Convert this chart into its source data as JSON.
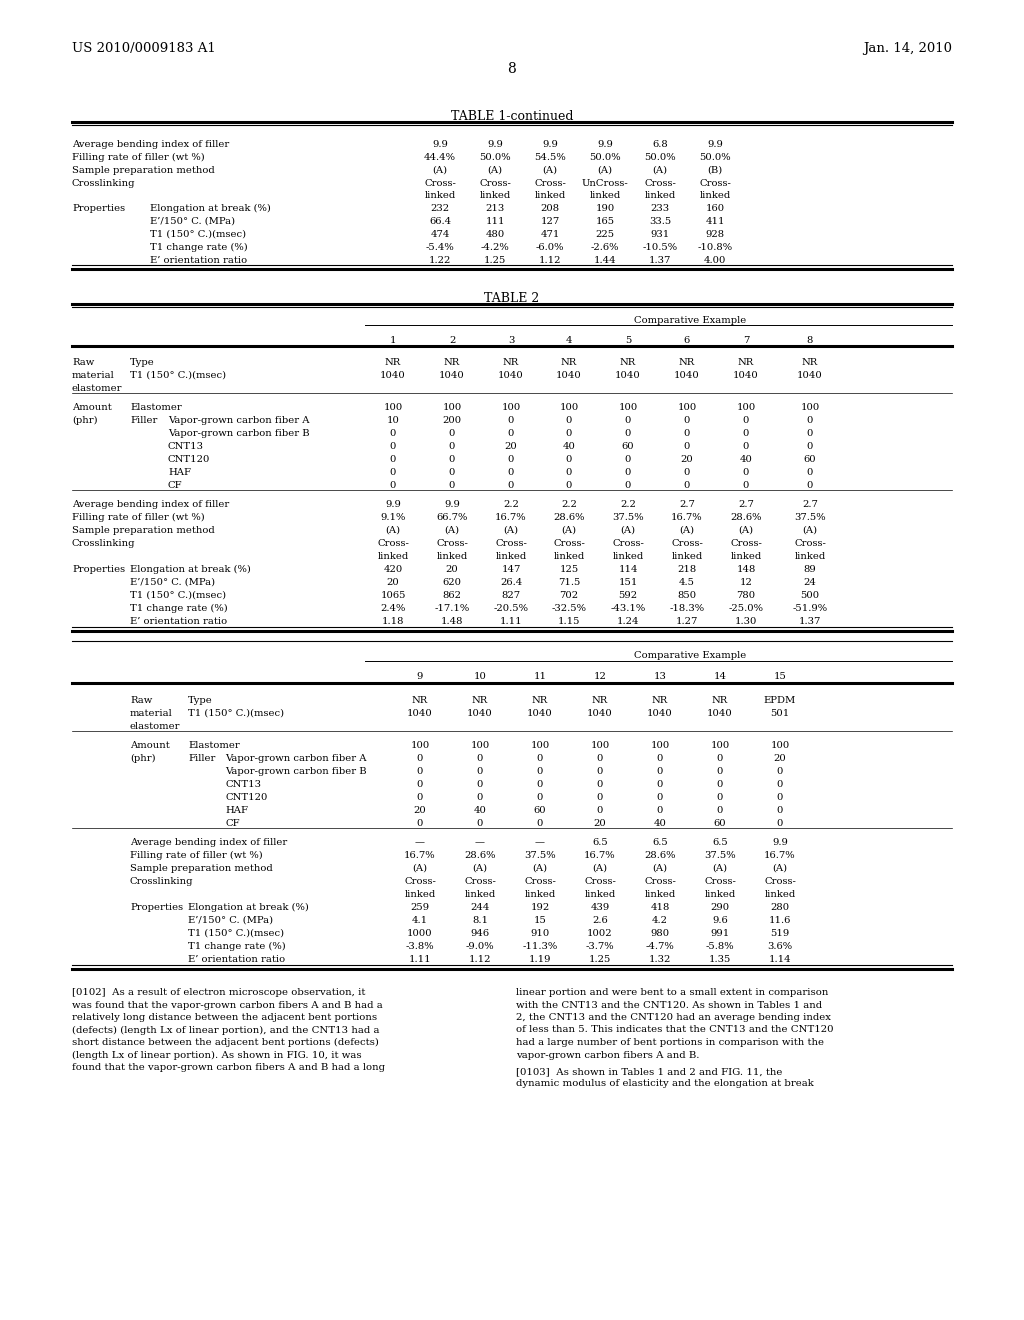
{
  "page_header_left": "US 2010/0009183 A1",
  "page_header_right": "Jan. 14, 2010",
  "page_number": "8",
  "background_color": "#ffffff",
  "text_color": "#000000"
}
